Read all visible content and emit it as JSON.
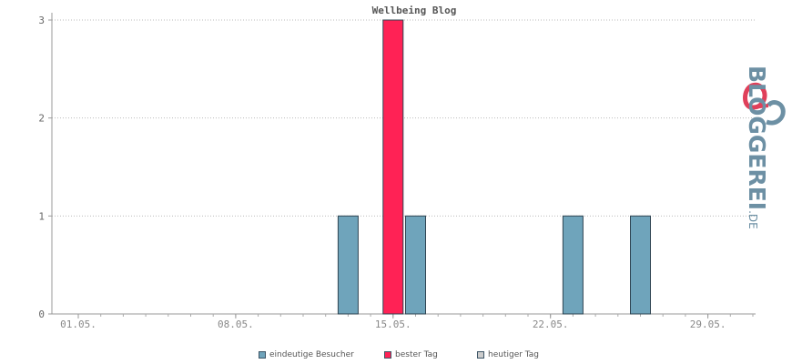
{
  "chart_data": {
    "type": "bar",
    "title": "Wellbeing Blog",
    "ylim": [
      0,
      3
    ],
    "yticks": [
      0,
      1,
      2,
      3
    ],
    "xticks": [
      "01.05.",
      "08.05.",
      "15.05.",
      "22.05.",
      "29.05."
    ],
    "series": [
      {
        "name": "eindeutige Besucher",
        "color": "#6fa4bb",
        "points": [
          {
            "date": "13.05.",
            "value": 1
          },
          {
            "date": "16.05.",
            "value": 1
          },
          {
            "date": "23.05.",
            "value": 1
          },
          {
            "date": "26.05.",
            "value": 1
          }
        ]
      },
      {
        "name": "bester Tag",
        "color": "#ff2255",
        "points": [
          {
            "date": "15.05.",
            "value": 3
          }
        ]
      },
      {
        "name": "heutiger Tag",
        "color": "#cccccc",
        "points": []
      }
    ],
    "grid": true
  },
  "legend": {
    "items": [
      {
        "label": "eindeutige Besucher",
        "color": "#6fa4bb"
      },
      {
        "label": "bester Tag",
        "color": "#ff2255"
      },
      {
        "label": "heutiger Tag",
        "color": "#cccccc"
      }
    ]
  },
  "logo": {
    "text_main": "BLOGGEREI",
    "text_suffix": ".DE",
    "colors": {
      "accent": "#e0405a",
      "main": "#6d90a4"
    }
  }
}
